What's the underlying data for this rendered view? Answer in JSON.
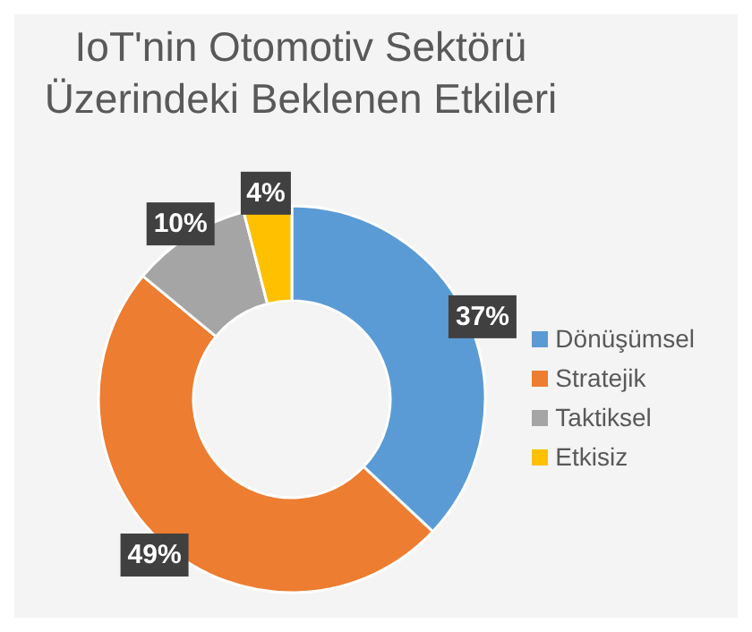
{
  "chart_data": {
    "type": "donut",
    "title": "IoT'nin Otomotiv Sektörü\nÜzerindeki Beklenen Etkileri",
    "categories": [
      "Dönüşümsel",
      "Stratejik",
      "Taktiksel",
      "Etkisiz"
    ],
    "values": [
      37,
      49,
      10,
      4
    ],
    "colors": [
      "#5b9bd5",
      "#ed7d31",
      "#a5a5a5",
      "#ffc000"
    ],
    "value_labels": [
      "37%",
      "49%",
      "10%",
      "4%"
    ],
    "legend": "right"
  }
}
